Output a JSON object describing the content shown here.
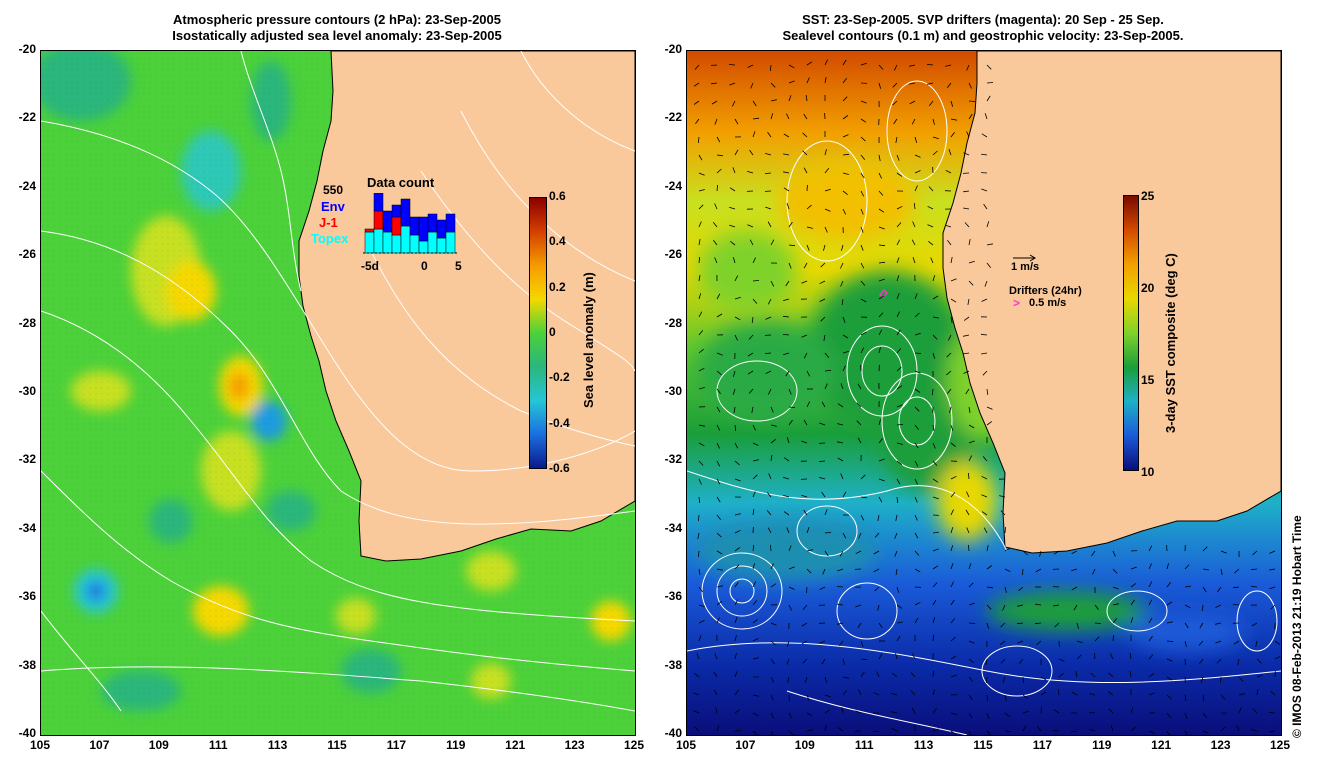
{
  "left_panel": {
    "title_line1": "Atmospheric pressure contours (2 hPa): 23-Sep-2005",
    "title_line2": "Isostatically adjusted sea level anomaly: 23-Sep-2005",
    "colorbar": {
      "label": "Sea level anomaly (m)",
      "ticks": [
        "0.6",
        "0.4",
        "0.2",
        "0",
        "-0.2",
        "-0.4",
        "-0.6"
      ],
      "colors": [
        "#8b0000",
        "#d44000",
        "#f59b00",
        "#f5d800",
        "#4cd13a",
        "#2ab67c",
        "#25c6d6",
        "#1a6fe0",
        "#0a1a8c"
      ]
    },
    "data_count": {
      "title": "Data count",
      "count": "550",
      "legend": [
        {
          "label": "Env",
          "color": "#0000ff"
        },
        {
          "label": "J-1",
          "color": "#ff0000"
        },
        {
          "label": "Topex",
          "color": "#00ffff"
        }
      ],
      "xticks": [
        "-5d",
        "0",
        "5"
      ],
      "bars": [
        {
          "topex": 0.35,
          "j1": 0.05,
          "env": 0.0
        },
        {
          "topex": 0.4,
          "j1": 0.3,
          "env": 0.3
        },
        {
          "topex": 0.35,
          "j1": 0.0,
          "env": 0.35
        },
        {
          "topex": 0.3,
          "j1": 0.3,
          "env": 0.2
        },
        {
          "topex": 0.45,
          "j1": 0.0,
          "env": 0.45
        },
        {
          "topex": 0.3,
          "j1": 0.0,
          "env": 0.3
        },
        {
          "topex": 0.2,
          "j1": 0.0,
          "env": 0.4
        },
        {
          "topex": 0.35,
          "j1": 0.0,
          "env": 0.3
        },
        {
          "topex": 0.25,
          "j1": 0.0,
          "env": 0.3
        },
        {
          "topex": 0.35,
          "j1": 0.0,
          "env": 0.3
        }
      ]
    }
  },
  "right_panel": {
    "title_line1": "SST: 23-Sep-2005. SVP drifters (magenta): 20 Sep - 25 Sep.",
    "title_line2": "Sealevel contours (0.1 m) and geostrophic velocity: 23-Sep-2005.",
    "colorbar": {
      "label": "3-day SST composite (deg C)",
      "ticks": [
        "25",
        "20",
        "15",
        "10"
      ],
      "colors": [
        "#7a0a00",
        "#d24b00",
        "#f2a000",
        "#e8d800",
        "#7fd22a",
        "#1a9e3a",
        "#1fb0c8",
        "#1a5ad8",
        "#0a0e7a"
      ]
    },
    "velocity_key": "1 m/s",
    "drifter_key_title": "Drifters (24hr)",
    "drifter_key_value": "0.5 m/s"
  },
  "axes": {
    "x_ticks": [
      "105",
      "107",
      "109",
      "111",
      "113",
      "115",
      "117",
      "119",
      "121",
      "123",
      "125"
    ],
    "y_ticks": [
      "-20",
      "-22",
      "-24",
      "-26",
      "-28",
      "-30",
      "-32",
      "-34",
      "-36",
      "-38",
      "-40"
    ]
  },
  "credit": "© IMOS 08-Feb-2013 21:19 Hobart Time",
  "map_colors": {
    "land": "#f9c89b",
    "coast": "#000000",
    "contour": "#ffffff"
  }
}
